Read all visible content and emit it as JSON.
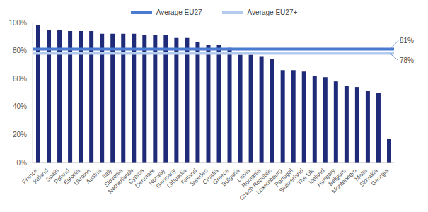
{
  "chart_data": {
    "type": "bar",
    "categories": [
      "France",
      "Ireland",
      "Spain",
      "Poland",
      "Estonia",
      "Ukraine",
      "Austria",
      "Italy",
      "Slovenia",
      "Netherlands",
      "Cyprus",
      "Denmark",
      "Norway",
      "Germany",
      "Lithuania",
      "Finland",
      "Sweden",
      "Croatia",
      "Greece",
      "Bulgaria",
      "Latvia",
      "Romania",
      "Czech Republic",
      "Luxembourg",
      "Portugal",
      "Switzerland",
      "The UK",
      "Iceland",
      "Hungary",
      "Belgium",
      "Montenegro",
      "Malta",
      "Slovakia",
      "Georgia"
    ],
    "values": [
      98,
      95,
      95,
      94,
      94,
      94,
      92,
      92,
      92,
      92,
      91,
      91,
      91,
      89,
      89,
      86,
      84,
      84,
      82,
      77,
      77,
      76,
      74,
      66,
      66,
      65,
      62,
      61,
      58,
      55,
      54,
      51,
      50,
      17
    ],
    "color": "#1f2a78",
    "ylim": [
      0,
      100
    ],
    "yticks": [
      {
        "value": 0,
        "label": "0%"
      },
      {
        "value": 20,
        "label": "20%"
      },
      {
        "value": 40,
        "label": "40%"
      },
      {
        "value": 60,
        "label": "60%"
      },
      {
        "value": 80,
        "label": "80%"
      },
      {
        "value": 100,
        "label": "100%"
      }
    ],
    "grid": false,
    "legend": "top",
    "lines": [
      {
        "name": "Average EU27",
        "value": 81,
        "label": "81%",
        "color": "#4a7bd0"
      },
      {
        "name": "Average EU27+",
        "value": 78,
        "label": "78%",
        "color": "#b3cbef"
      }
    ]
  }
}
